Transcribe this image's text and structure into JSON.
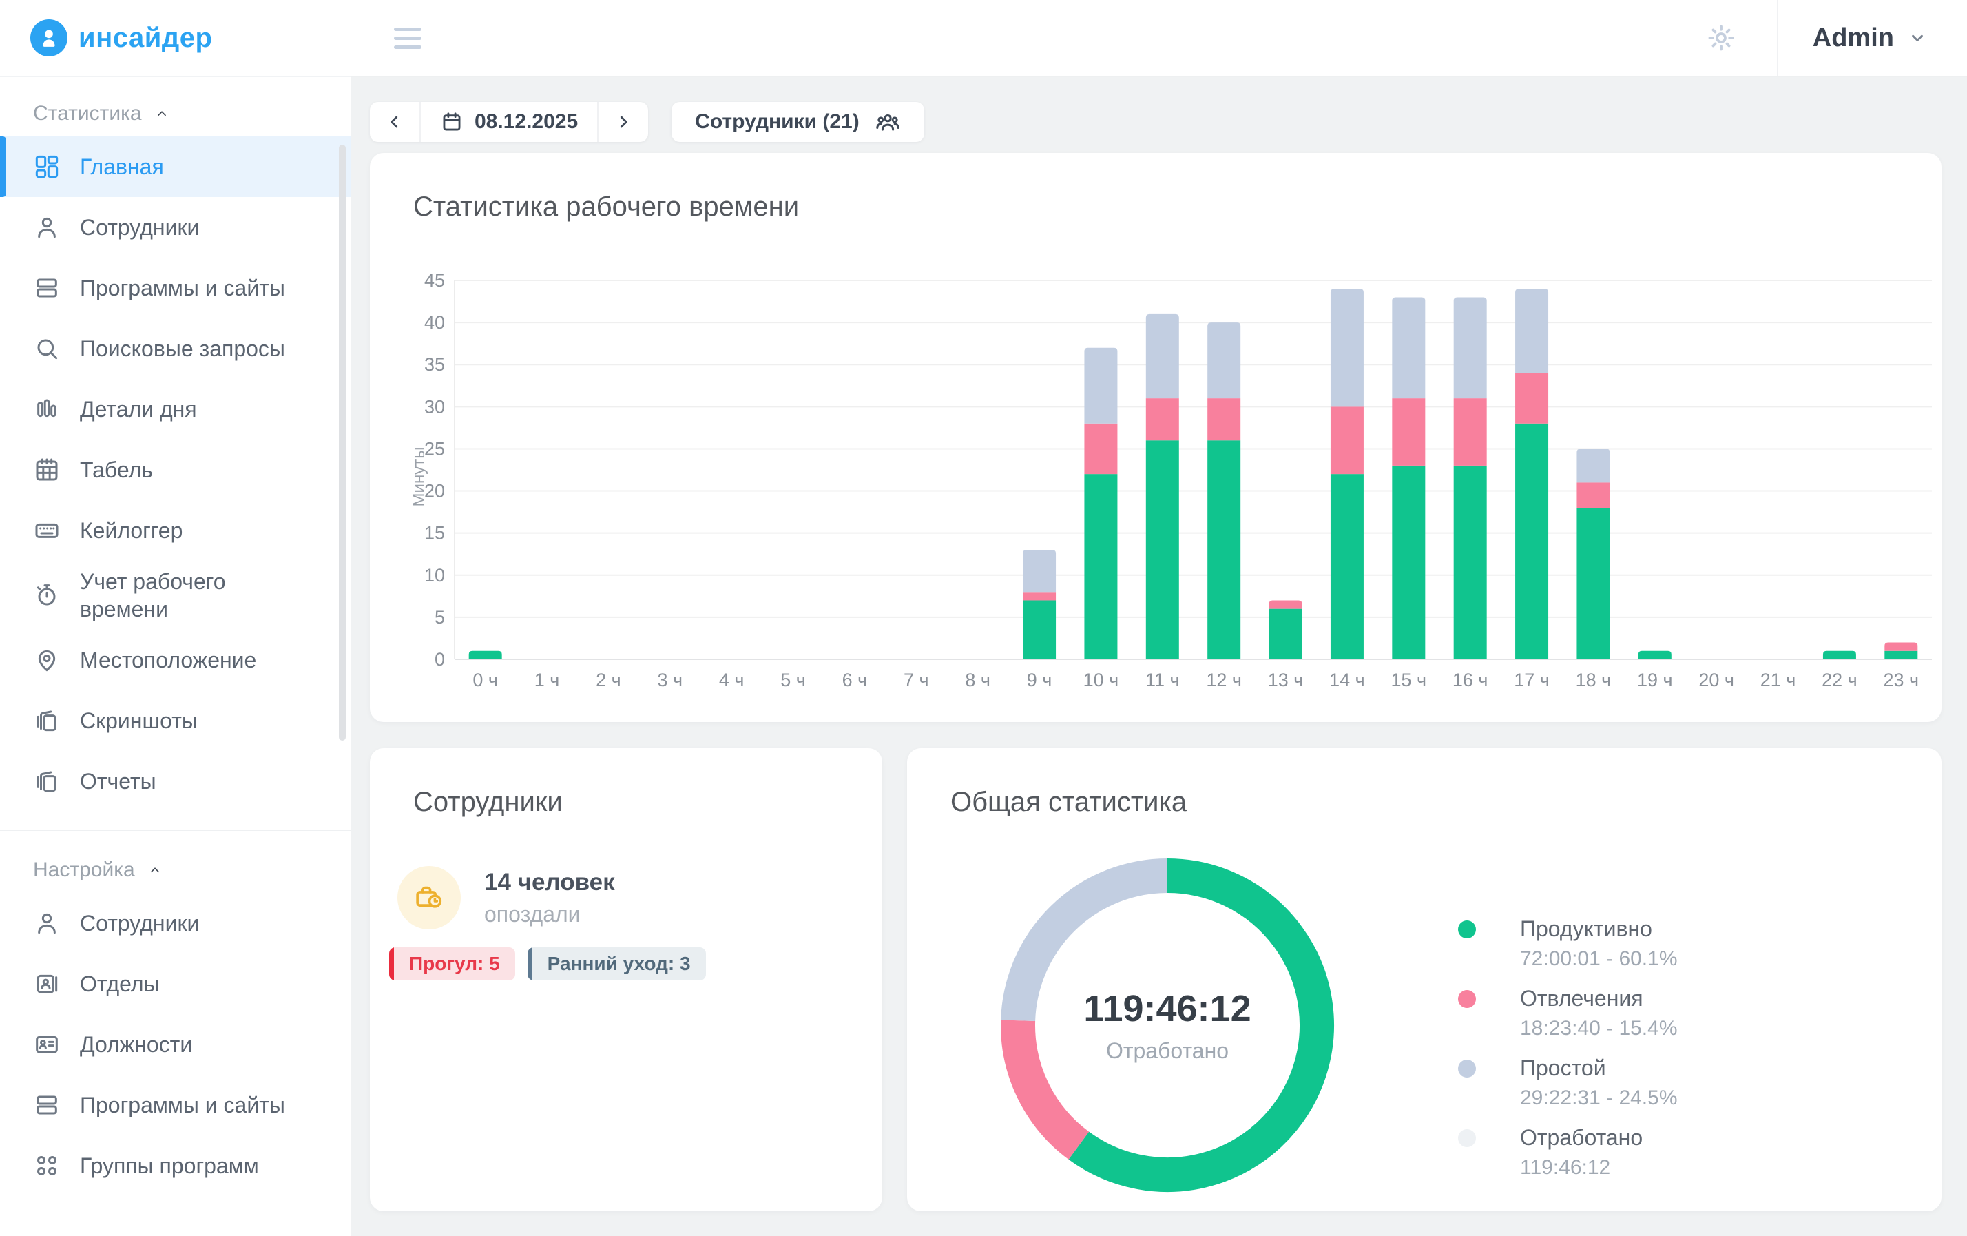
{
  "brand": {
    "name": "инсайдер",
    "color": "#2ba3f2"
  },
  "header": {
    "user_label": "Admin"
  },
  "toolbar": {
    "date": "08.12.2025",
    "employees_label": "Сотрудники (21)"
  },
  "sidebar": {
    "sections": [
      {
        "label": "Статистика",
        "id": "statistics",
        "items": [
          {
            "id": "main",
            "label": "Главная",
            "icon": "dashboard",
            "active": true
          },
          {
            "id": "employees",
            "label": "Сотрудники",
            "icon": "person",
            "active": false
          },
          {
            "id": "programs-sites",
            "label": "Программы и сайты",
            "icon": "rows",
            "active": false
          },
          {
            "id": "search-queries",
            "label": "Поисковые запросы",
            "icon": "search",
            "active": false
          },
          {
            "id": "day-details",
            "label": "Детали дня",
            "icon": "bars",
            "active": false
          },
          {
            "id": "timesheet",
            "label": "Табель",
            "icon": "calendar-grid",
            "active": false
          },
          {
            "id": "keylogger",
            "label": "Кейлоггер",
            "icon": "keyboard",
            "active": false
          },
          {
            "id": "work-time",
            "label": "Учет рабочего времени",
            "icon": "stopwatch",
            "active": false
          },
          {
            "id": "location",
            "label": "Местоположение",
            "icon": "location",
            "active": false
          },
          {
            "id": "screenshots",
            "label": "Скриншоты",
            "icon": "layers",
            "active": false
          },
          {
            "id": "reports",
            "label": "Отчеты",
            "icon": "layers",
            "active": false
          }
        ]
      },
      {
        "label": "Настройка",
        "id": "settings",
        "items": [
          {
            "id": "employees-settings",
            "label": "Сотрудники",
            "icon": "person",
            "active": false
          },
          {
            "id": "departments",
            "label": "Отделы",
            "icon": "badge",
            "active": false
          },
          {
            "id": "positions",
            "label": "Должности",
            "icon": "id-card",
            "active": false
          },
          {
            "id": "programs-sites-settings",
            "label": "Программы и сайты",
            "icon": "rows",
            "active": false
          },
          {
            "id": "program-groups",
            "label": "Группы программ",
            "icon": "circles",
            "active": false
          }
        ]
      }
    ]
  },
  "chart_data": [
    {
      "type": "bar",
      "stacked": true,
      "title": "Статистика рабочего времени",
      "xlabel": "",
      "ylabel": "Минуты",
      "ylim": [
        0,
        45
      ],
      "ytick_step": 5,
      "grid": true,
      "legend_position": "none",
      "categories": [
        "0 ч",
        "1 ч",
        "2 ч",
        "3 ч",
        "4 ч",
        "5 ч",
        "6 ч",
        "7 ч",
        "8 ч",
        "9 ч",
        "10 ч",
        "11 ч",
        "12 ч",
        "13 ч",
        "14 ч",
        "15 ч",
        "16 ч",
        "17 ч",
        "18 ч",
        "19 ч",
        "20 ч",
        "21 ч",
        "22 ч",
        "23 ч"
      ],
      "series": [
        {
          "name": "Продуктивно",
          "color": "#10c48e",
          "values": [
            1,
            0,
            0,
            0,
            0,
            0,
            0,
            0,
            0,
            7,
            22,
            26,
            26,
            6,
            22,
            23,
            23,
            28,
            18,
            1,
            0,
            0,
            1,
            1
          ]
        },
        {
          "name": "Отвлечения",
          "color": "#f8809d",
          "values": [
            0,
            0,
            0,
            0,
            0,
            0,
            0,
            0,
            0,
            1,
            6,
            5,
            5,
            1,
            8,
            8,
            8,
            6,
            3,
            0,
            0,
            0,
            0,
            1
          ]
        },
        {
          "name": "Простой",
          "color": "#c2cee1",
          "values": [
            0,
            0,
            0,
            0,
            0,
            0,
            0,
            0,
            0,
            5,
            9,
            10,
            9,
            0,
            14,
            12,
            12,
            10,
            4,
            0,
            0,
            0,
            0,
            0
          ]
        }
      ]
    },
    {
      "type": "pie",
      "donut": true,
      "title": "Общая статистика",
      "center_value": "119:46:12",
      "center_caption": "Отработано",
      "slices": [
        {
          "name": "Продуктивно",
          "time": "72:00:01",
          "percent": 60.1,
          "display": "72:00:01 - 60.1%",
          "color": "#10c48e"
        },
        {
          "name": "Отвлечения",
          "time": "18:23:40",
          "percent": 15.4,
          "display": "18:23:40 - 15.4%",
          "color": "#f8809d"
        },
        {
          "name": "Простой",
          "time": "29:22:31",
          "percent": 24.5,
          "display": "29:22:31 - 24.5%",
          "color": "#c2cee1"
        },
        {
          "name": "Отработано",
          "time": "119:46:12",
          "percent": null,
          "display": "119:46:12",
          "color": "#eef1f4"
        }
      ]
    }
  ],
  "employees_card": {
    "title": "Сотрудники",
    "count_value": "14 человек",
    "count_caption": "опоздали",
    "badges": [
      {
        "label": "Прогул: 5",
        "color": "#e8394a",
        "bg": "#fbe2e5",
        "bar": "#ea2c3e"
      },
      {
        "label": "Ранний уход: 3",
        "color": "#51697b",
        "bg": "#e9eef1",
        "bar": "#5d7991"
      }
    ]
  },
  "summary_card": {
    "title": "Общая статистика",
    "center_value": "119:46:12",
    "center_caption": "Отработано"
  }
}
